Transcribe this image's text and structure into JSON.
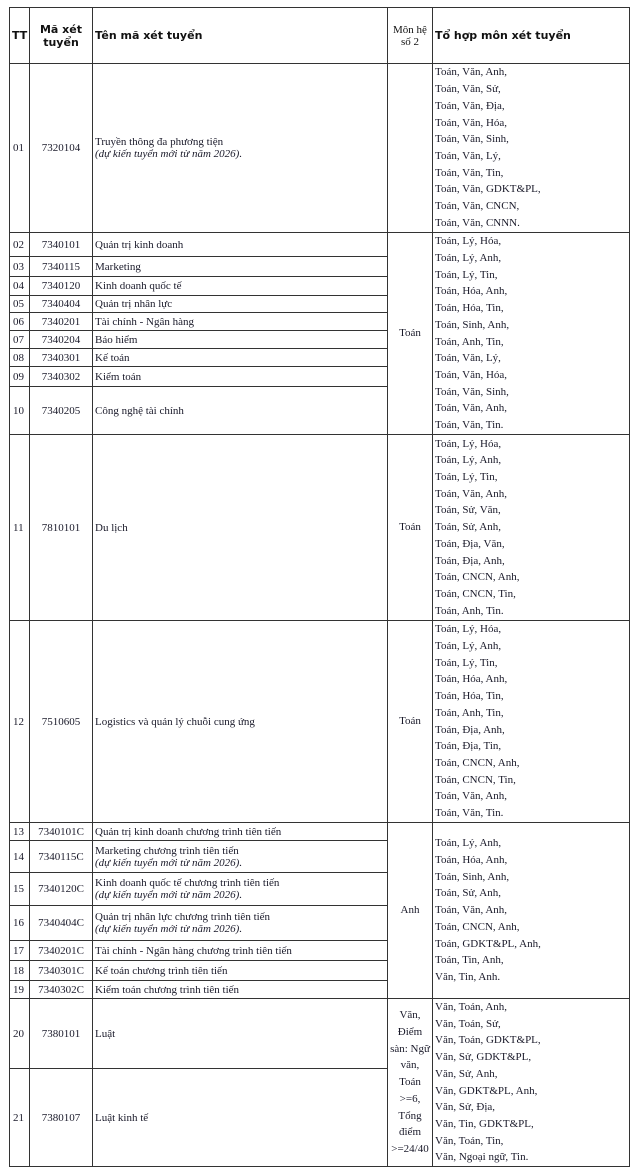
{
  "header": {
    "tt": "TT",
    "code": "Mã xét tuyển",
    "name": "Tên mã xét tuyển",
    "mon_he_so_2": "Môn hệ số 2",
    "combos": "Tổ hợp môn xét tuyển"
  },
  "groups": [
    {
      "mon_he_so_2": "",
      "rows": [
        {
          "tt": "01",
          "code": "7320104",
          "name": "Truyền thông đa phương tiện",
          "note": "(dự kiến tuyển mới từ năm 2026)."
        }
      ],
      "combos": [
        "Toán, Văn, Anh,",
        "Toán, Văn, Sử,",
        "Toán, Văn, Địa,",
        "Toán, Văn, Hóa,",
        "Toán, Văn, Sinh,",
        "Toán, Văn, Lý,",
        "Toán, Văn, Tin,",
        "Toán, Văn, GDKT&PL,",
        "Toán, Văn, CNCN,",
        "Toán, Văn, CNNN."
      ]
    },
    {
      "mon_he_so_2": "Toán",
      "rows": [
        {
          "tt": "02",
          "code": "7340101",
          "name": "Quản trị kinh doanh"
        },
        {
          "tt": "03",
          "code": "7340115",
          "name": "Marketing"
        },
        {
          "tt": "04",
          "code": "7340120",
          "name": "Kinh doanh quốc tế"
        },
        {
          "tt": "05",
          "code": "7340404",
          "name": "Quản trị nhân lực"
        },
        {
          "tt": "06",
          "code": "7340201",
          "name": "Tài chính - Ngân hàng"
        },
        {
          "tt": "07",
          "code": "7340204",
          "name": "Bảo hiểm"
        },
        {
          "tt": "08",
          "code": "7340301",
          "name": "Kế toán"
        },
        {
          "tt": "09",
          "code": "7340302",
          "name": "Kiểm toán"
        },
        {
          "tt": "10",
          "code": "7340205",
          "name": "Công nghệ tài chính"
        }
      ],
      "combos": [
        "Toán, Lý, Hóa,",
        "Toán, Lý, Anh,",
        "Toán, Lý, Tin,",
        "Toán, Hóa, Anh,",
        "Toán, Hóa, Tin,",
        "Toán, Sinh, Anh,",
        "Toán, Anh, Tin,",
        "Toán, Văn, Lý,",
        "Toán, Văn, Hóa,",
        "Toán, Văn, Sinh,",
        "Toán, Văn, Anh,",
        "Toán, Văn, Tin."
      ]
    },
    {
      "mon_he_so_2": "Toán",
      "rows": [
        {
          "tt": "11",
          "code": "7810101",
          "name": "Du lịch"
        }
      ],
      "combos": [
        "Toán, Lý, Hóa,",
        "Toán, Lý, Anh,",
        "Toán, Lý, Tin,",
        "Toán, Văn, Anh,",
        "Toán, Sử, Văn,",
        "Toán, Sử, Anh,",
        "Toán, Địa, Văn,",
        "Toán, Địa, Anh,",
        "Toán, CNCN, Anh,",
        "Toán, CNCN, Tin,",
        "Toán, Anh, Tin."
      ]
    },
    {
      "mon_he_so_2": "Toán",
      "rows": [
        {
          "tt": "12",
          "code": "7510605",
          "name": "Logistics và quản lý chuỗi cung ứng"
        }
      ],
      "combos": [
        "Toán, Lý, Hóa,",
        "Toán, Lý, Anh,",
        "Toán, Lý, Tin,",
        "Toán, Hóa, Anh,",
        "Toán, Hóa, Tin,",
        "Toán, Anh, Tin,",
        "Toán, Địa, Anh,",
        "Toán, Địa, Tin,",
        "Toán, CNCN, Anh,",
        "Toán, CNCN, Tin,",
        "Toán, Văn, Anh,",
        "Toán, Văn, Tin."
      ]
    },
    {
      "mon_he_so_2": "Anh",
      "rows": [
        {
          "tt": "13",
          "code": "7340101C",
          "name": "Quản trị kinh doanh chương trình tiên tiến"
        },
        {
          "tt": "14",
          "code": "7340115C",
          "name": "Marketing chương trình tiên tiến",
          "note": "(dự kiến tuyển mới từ năm 2026)."
        },
        {
          "tt": "15",
          "code": "7340120C",
          "name": "Kinh doanh quốc tế chương trình tiên tiến",
          "note": "(dự kiến tuyển mới từ năm 2026)."
        },
        {
          "tt": "16",
          "code": "7340404C",
          "name": "Quản trị nhân lực chương trình tiên tiến",
          "note": "(dự kiến tuyển mới từ năm 2026)."
        },
        {
          "tt": "17",
          "code": "7340201C",
          "name": "Tài chính - Ngân hàng chương trình tiên tiến"
        },
        {
          "tt": "18",
          "code": "7340301C",
          "name": "Kế toán chương trình tiên tiến"
        },
        {
          "tt": "19",
          "code": "7340302C",
          "name": "Kiểm toán chương trình tiên tiến"
        }
      ],
      "combos": [
        "Toán, Lý, Anh,",
        "Toán, Hóa, Anh,",
        "Toán, Sinh, Anh,",
        "Toán, Sử, Anh,",
        "Toán, Văn, Anh,",
        "Toán, CNCN, Anh,",
        "Toán, GDKT&PL, Anh,",
        "Toán, Tin, Anh,",
        "Văn, Tin, Anh."
      ]
    },
    {
      "mon_he_so_2": "Văn, Điểm sàn: Ngữ văn, Toán >=6, Tổng điểm >=24/40",
      "rows": [
        {
          "tt": "20",
          "code": "7380101",
          "name": "Luật"
        },
        {
          "tt": "21",
          "code": "7380107",
          "name": "Luật kinh tế"
        }
      ],
      "combos": [
        "Văn, Toán, Anh,",
        "Văn, Toán, Sử,",
        "Văn, Toán, GDKT&PL,",
        "Văn, Sử, GDKT&PL,",
        "Văn, Sử, Anh,",
        "Văn, GDKT&PL, Anh,",
        "Văn, Sử, Địa,",
        "Văn, Tin, GDKT&PL,",
        "Văn, Toán, Tin,",
        "Văn, Ngoại ngữ, Tin."
      ]
    }
  ]
}
